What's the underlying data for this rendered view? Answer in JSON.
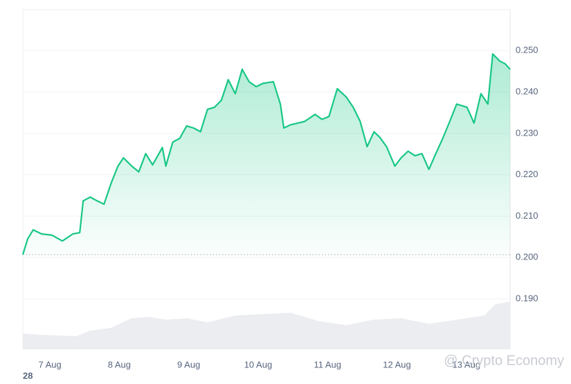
{
  "chart_data": {
    "type": "line",
    "x": [
      6.61,
      6.68,
      6.76,
      6.88,
      7.03,
      7.18,
      7.33,
      7.43,
      7.48,
      7.58,
      7.68,
      7.78,
      7.88,
      7.98,
      8.06,
      8.18,
      8.28,
      8.38,
      8.48,
      8.62,
      8.67,
      8.77,
      8.87,
      8.97,
      9.07,
      9.17,
      9.27,
      9.37,
      9.47,
      9.57,
      9.67,
      9.77,
      9.87,
      9.97,
      10.07,
      10.22,
      10.32,
      10.37,
      10.47,
      10.57,
      10.67,
      10.82,
      10.92,
      11.02,
      11.14,
      11.27,
      11.37,
      11.47,
      11.57,
      11.67,
      11.75,
      11.85,
      11.97,
      12.06,
      12.16,
      12.26,
      12.36,
      12.46,
      12.56,
      12.66,
      12.76,
      12.86,
      13.01,
      13.11,
      13.21,
      13.31,
      13.38,
      13.48,
      13.56,
      13.63
    ],
    "series": [
      {
        "color": "#16c784",
        "values": [
          0.2007,
          0.2045,
          0.2067,
          0.2057,
          0.2054,
          0.204,
          0.2057,
          0.206,
          0.2137,
          0.2146,
          0.2137,
          0.2129,
          0.2179,
          0.2221,
          0.2241,
          0.2221,
          0.2207,
          0.2251,
          0.2224,
          0.2266,
          0.2221,
          0.2279,
          0.2288,
          0.2318,
          0.2313,
          0.2304,
          0.2358,
          0.2363,
          0.238,
          0.243,
          0.2396,
          0.2455,
          0.2425,
          0.2413,
          0.2421,
          0.2425,
          0.2371,
          0.2313,
          0.2321,
          0.2325,
          0.2329,
          0.2346,
          0.2334,
          0.2341,
          0.2408,
          0.2388,
          0.2363,
          0.2329,
          0.2268,
          0.2304,
          0.2291,
          0.2268,
          0.2221,
          0.2241,
          0.2257,
          0.2246,
          0.2251,
          0.2213,
          0.2251,
          0.2288,
          0.2329,
          0.2371,
          0.2363,
          0.2325,
          0.2396,
          0.2371,
          0.2492,
          0.2475,
          0.2468,
          0.2455
        ]
      }
    ],
    "xlim": [
      6.61,
      13.63
    ],
    "xticks": [
      {
        "value": 7,
        "label": "7 Aug"
      },
      {
        "value": 8,
        "label": "8 Aug"
      },
      {
        "value": 9,
        "label": "9 Aug"
      },
      {
        "value": 10,
        "label": "10 Aug"
      },
      {
        "value": 11,
        "label": "11 Aug"
      },
      {
        "value": 12,
        "label": "12 Aug"
      },
      {
        "value": 13,
        "label": "13 Aug"
      }
    ],
    "ylim": [
      0.1778,
      0.2599
    ],
    "yticks": [
      {
        "value": 0.19,
        "label": "0.190"
      },
      {
        "value": 0.2,
        "label": "0.200"
      },
      {
        "value": 0.21,
        "label": "0.210"
      },
      {
        "value": 0.22,
        "label": "0.220"
      },
      {
        "value": 0.23,
        "label": "0.230"
      },
      {
        "value": 0.24,
        "label": "0.240"
      },
      {
        "value": 0.25,
        "label": "0.250"
      }
    ],
    "reference_line": 0.2007,
    "grid": true,
    "corner_label": "28",
    "watermark": "@ Crypto Economy"
  }
}
